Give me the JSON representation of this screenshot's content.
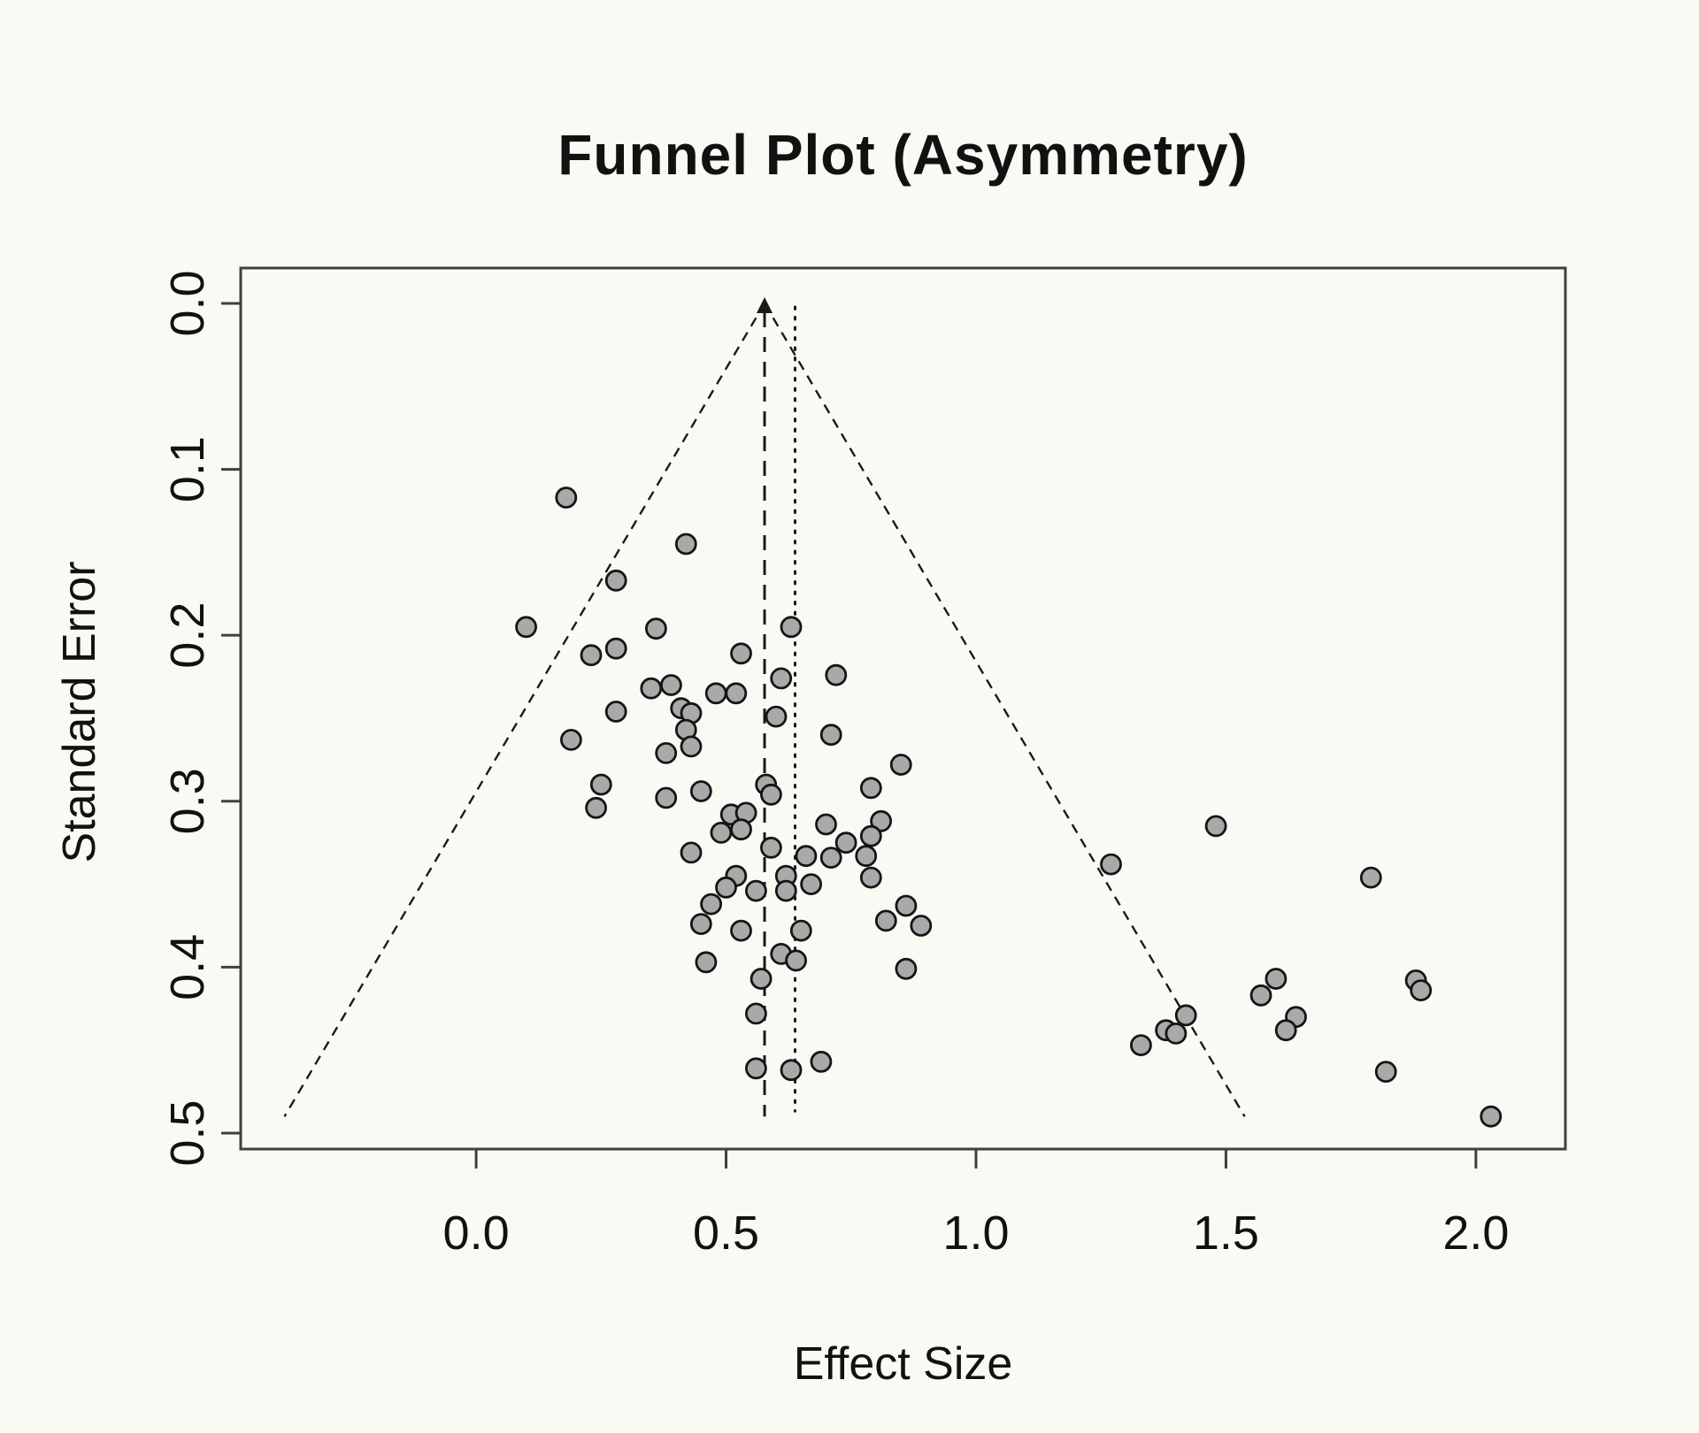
{
  "page": {
    "title": "Funnel Plot (Asymmetry)"
  },
  "axes": {
    "x_label": "Effect Size",
    "y_label": "Standard Error",
    "x_tick_labels": [
      "0.0",
      "0.5",
      "1.0",
      "1.5",
      "2.0"
    ],
    "y_tick_labels": [
      "0.0",
      "0.1",
      "0.2",
      "0.3",
      "0.4",
      "0.5"
    ]
  },
  "colors": {
    "background": "#faf9f3",
    "frame": "#3f3f3f",
    "text": "#111111",
    "line": "#1a1a1a",
    "point_fill": "#a9a9a9",
    "point_stroke": "#151515"
  },
  "chart_data": {
    "type": "scatter",
    "title": "Funnel Plot (Asymmetry)",
    "xlabel": "Effect Size",
    "ylabel": "Standard Error",
    "xlim": [
      -0.471,
      2.179
    ],
    "ylim": [
      -0.0213,
      0.5096
    ],
    "y_axis_inverted": true,
    "grid": false,
    "legend": "none",
    "x_ticks": [
      0.0,
      0.5,
      1.0,
      1.5,
      2.0
    ],
    "y_ticks": [
      0.0,
      0.1,
      0.2,
      0.3,
      0.4,
      0.5
    ],
    "funnel": {
      "center_effect": 0.577,
      "ci_slope": 1.96,
      "se_line_max": 0.49,
      "center_line_style": "dashed-with-arrow",
      "dotted_line_x": 0.638
    },
    "points_format": [
      "effect_size",
      "standard_error"
    ],
    "points": [
      [
        0.18,
        0.117
      ],
      [
        0.42,
        0.145
      ],
      [
        0.28,
        0.167
      ],
      [
        0.1,
        0.195
      ],
      [
        0.36,
        0.196
      ],
      [
        0.63,
        0.195
      ],
      [
        0.23,
        0.212
      ],
      [
        0.28,
        0.208
      ],
      [
        0.53,
        0.211
      ],
      [
        0.61,
        0.226
      ],
      [
        0.72,
        0.224
      ],
      [
        0.35,
        0.232
      ],
      [
        0.39,
        0.23
      ],
      [
        0.48,
        0.235
      ],
      [
        0.52,
        0.235
      ],
      [
        0.41,
        0.244
      ],
      [
        0.43,
        0.247
      ],
      [
        0.28,
        0.246
      ],
      [
        0.6,
        0.249
      ],
      [
        0.42,
        0.257
      ],
      [
        0.71,
        0.26
      ],
      [
        0.19,
        0.263
      ],
      [
        0.38,
        0.271
      ],
      [
        0.43,
        0.267
      ],
      [
        0.25,
        0.29
      ],
      [
        0.24,
        0.304
      ],
      [
        0.38,
        0.298
      ],
      [
        0.45,
        0.294
      ],
      [
        0.58,
        0.29
      ],
      [
        0.59,
        0.296
      ],
      [
        0.51,
        0.308
      ],
      [
        0.54,
        0.307
      ],
      [
        0.49,
        0.319
      ],
      [
        0.53,
        0.317
      ],
      [
        0.43,
        0.331
      ],
      [
        0.7,
        0.314
      ],
      [
        0.59,
        0.328
      ],
      [
        0.66,
        0.333
      ],
      [
        0.74,
        0.325
      ],
      [
        0.71,
        0.334
      ],
      [
        0.78,
        0.333
      ],
      [
        0.79,
        0.346
      ],
      [
        0.62,
        0.345
      ],
      [
        0.67,
        0.35
      ],
      [
        0.52,
        0.345
      ],
      [
        0.5,
        0.352
      ],
      [
        0.56,
        0.354
      ],
      [
        0.62,
        0.354
      ],
      [
        0.47,
        0.362
      ],
      [
        0.45,
        0.374
      ],
      [
        0.46,
        0.397
      ],
      [
        0.53,
        0.378
      ],
      [
        0.65,
        0.378
      ],
      [
        0.61,
        0.392
      ],
      [
        0.64,
        0.396
      ],
      [
        0.57,
        0.407
      ],
      [
        0.56,
        0.428
      ],
      [
        0.56,
        0.461
      ],
      [
        0.63,
        0.462
      ],
      [
        0.69,
        0.457
      ],
      [
        0.85,
        0.278
      ],
      [
        0.79,
        0.292
      ],
      [
        0.81,
        0.312
      ],
      [
        0.79,
        0.321
      ],
      [
        0.86,
        0.363
      ],
      [
        0.82,
        0.372
      ],
      [
        0.89,
        0.375
      ],
      [
        0.86,
        0.401
      ],
      [
        1.27,
        0.338
      ],
      [
        1.48,
        0.315
      ],
      [
        1.33,
        0.447
      ],
      [
        1.38,
        0.438
      ],
      [
        1.4,
        0.44
      ],
      [
        1.42,
        0.429
      ],
      [
        1.57,
        0.417
      ],
      [
        1.6,
        0.407
      ],
      [
        1.64,
        0.43
      ],
      [
        1.62,
        0.438
      ],
      [
        1.79,
        0.346
      ],
      [
        1.88,
        0.408
      ],
      [
        1.89,
        0.414
      ],
      [
        1.82,
        0.463
      ],
      [
        2.03,
        0.49
      ]
    ]
  }
}
